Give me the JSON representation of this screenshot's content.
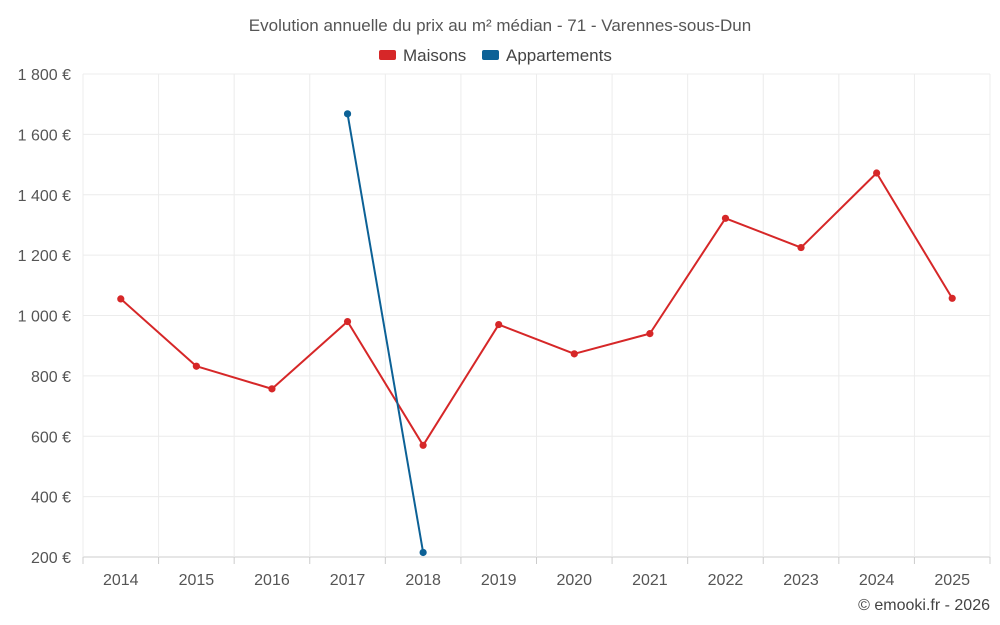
{
  "chart_data": {
    "type": "line",
    "title": "Evolution annuelle du prix au m² médian - 71 - Varennes-sous-Dun",
    "categories": [
      "2014",
      "2015",
      "2016",
      "2017",
      "2018",
      "2019",
      "2020",
      "2021",
      "2022",
      "2023",
      "2024",
      "2025"
    ],
    "series": [
      {
        "name": "Maisons",
        "color": "#d62728",
        "values": [
          1055,
          832,
          757,
          980,
          570,
          970,
          873,
          940,
          1322,
          1225,
          1472,
          1057
        ]
      },
      {
        "name": "Appartements",
        "color": "#0c6196",
        "values": [
          null,
          null,
          null,
          1668,
          215,
          null,
          null,
          null,
          null,
          null,
          null,
          null
        ]
      }
    ],
    "ylim": [
      200,
      1800
    ],
    "yticks": [
      200,
      400,
      600,
      800,
      1000,
      1200,
      1400,
      1600,
      1800
    ],
    "ytick_labels": [
      "200 €",
      "400 €",
      "600 €",
      "800 €",
      "1 000 €",
      "1 200 €",
      "1 400 €",
      "1 600 €",
      "1 800 €"
    ],
    "xlabel": "",
    "ylabel": "",
    "grid": true,
    "legend_position": "top-center"
  },
  "credit": "© emooki.fr - 2026"
}
